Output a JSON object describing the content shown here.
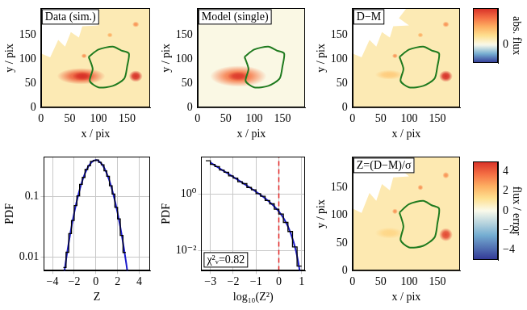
{
  "chart_data": [
    {
      "type": "image",
      "title": "Data (sim.)",
      "x_label": "x / pix",
      "y_label": "y / pix",
      "xlim": [
        0,
        190
      ],
      "ylim": [
        0,
        205
      ],
      "xticks": [
        0,
        50,
        100,
        150
      ],
      "yticks": [
        0,
        50,
        100,
        150
      ],
      "clim": [
        -0.5,
        1.0
      ],
      "background": 0.15,
      "color": "#1e7a1e",
      "sources": [
        {
          "x": 70,
          "y": 65,
          "rx": 42,
          "ry": 17,
          "value": 0.8
        },
        {
          "x": 72,
          "y": 65,
          "rx": 18,
          "ry": 9,
          "value": 1.0
        },
        {
          "x": 165,
          "y": 65,
          "rx": 12,
          "ry": 12,
          "value": 1.0
        },
        {
          "x": 75,
          "y": 107,
          "rx": 5,
          "ry": 5,
          "value": 0.6
        },
        {
          "x": 120,
          "y": 150,
          "rx": 5,
          "ry": 5,
          "value": 0.5
        },
        {
          "x": 165,
          "y": 172,
          "rx": 6,
          "ry": 6,
          "value": 0.6
        }
      ],
      "mask": [
        [
          0,
          205
        ],
        [
          95,
          205
        ],
        [
          82,
          185
        ],
        [
          100,
          170
        ],
        [
          72,
          168
        ],
        [
          66,
          145
        ],
        [
          52,
          156
        ],
        [
          42,
          126
        ],
        [
          30,
          140
        ],
        [
          16,
          104
        ],
        [
          0,
          112
        ]
      ],
      "contour": [
        [
          83,
          105
        ],
        [
          100,
          120
        ],
        [
          125,
          126
        ],
        [
          140,
          118
        ],
        [
          153,
          112
        ],
        [
          150,
          85
        ],
        [
          145,
          60
        ],
        [
          125,
          45
        ],
        [
          100,
          42
        ],
        [
          85,
          55
        ],
        [
          90,
          80
        ]
      ]
    },
    {
      "type": "image",
      "title": "Model (single)",
      "x_label": "x / pix",
      "y_label": "y / pix",
      "xlim": [
        0,
        190
      ],
      "ylim": [
        0,
        205
      ],
      "xticks": [
        0,
        50,
        100,
        150
      ],
      "yticks": [
        0,
        50,
        100,
        150
      ],
      "clim": [
        -0.5,
        1.0
      ],
      "background": 0.02,
      "color": "#1e7a1e",
      "sources": [
        {
          "x": 72,
          "y": 65,
          "rx": 50,
          "ry": 22,
          "value": 0.7
        },
        {
          "x": 72,
          "y": 65,
          "rx": 20,
          "ry": 10,
          "value": 0.95
        }
      ],
      "contour": [
        [
          83,
          105
        ],
        [
          100,
          120
        ],
        [
          125,
          126
        ],
        [
          140,
          118
        ],
        [
          153,
          112
        ],
        [
          150,
          85
        ],
        [
          145,
          60
        ],
        [
          125,
          45
        ],
        [
          100,
          42
        ],
        [
          85,
          55
        ],
        [
          90,
          80
        ]
      ]
    },
    {
      "type": "image",
      "title": "D−M",
      "x_label": "x / pix",
      "y_label": "y / pix",
      "xlim": [
        0,
        190
      ],
      "ylim": [
        0,
        205
      ],
      "xticks": [
        0,
        50,
        100,
        150
      ],
      "yticks": [
        0,
        50,
        100,
        150
      ],
      "clim": [
        -0.5,
        1.0
      ],
      "background": 0.15,
      "color": "#1e7a1e",
      "sources": [
        {
          "x": 65,
          "y": 68,
          "rx": 25,
          "ry": 10,
          "value": 0.35
        },
        {
          "x": 165,
          "y": 65,
          "rx": 12,
          "ry": 12,
          "value": 1.0
        },
        {
          "x": 75,
          "y": 107,
          "rx": 5,
          "ry": 5,
          "value": 0.6
        },
        {
          "x": 120,
          "y": 150,
          "rx": 5,
          "ry": 5,
          "value": 0.5
        },
        {
          "x": 165,
          "y": 172,
          "rx": 6,
          "ry": 6,
          "value": 0.6
        }
      ],
      "mask": [
        [
          0,
          205
        ],
        [
          95,
          205
        ],
        [
          82,
          185
        ],
        [
          100,
          170
        ],
        [
          72,
          168
        ],
        [
          66,
          145
        ],
        [
          52,
          156
        ],
        [
          42,
          126
        ],
        [
          30,
          140
        ],
        [
          16,
          104
        ],
        [
          0,
          112
        ]
      ],
      "contour": [
        [
          83,
          105
        ],
        [
          100,
          120
        ],
        [
          125,
          126
        ],
        [
          140,
          118
        ],
        [
          153,
          112
        ],
        [
          150,
          85
        ],
        [
          145,
          60
        ],
        [
          125,
          45
        ],
        [
          100,
          42
        ],
        [
          85,
          55
        ],
        [
          90,
          80
        ]
      ]
    },
    {
      "type": "colorbar",
      "y_label": "abs. flux",
      "ylim": [
        -0.5,
        1.0
      ],
      "yticks": [
        0
      ]
    },
    {
      "type": "histogram",
      "x_label": "Z",
      "y_label": "PDF",
      "log": "y",
      "grid": true,
      "xlim": [
        -4.8,
        5.0
      ],
      "ylim": [
        0.006,
        0.45
      ],
      "xticks": [
        {
          "value": -4,
          "label": "−4"
        },
        {
          "value": -2,
          "label": "−2"
        },
        0,
        2,
        4
      ],
      "yticks": [
        0.01,
        0.1
      ],
      "color": "#000000",
      "bins": [
        -3,
        -2.75,
        -2.5,
        -2.25,
        -2,
        -1.75,
        -1.5,
        -1.25,
        -1,
        -0.75,
        -0.5,
        -0.25,
        0,
        0.25,
        0.5,
        0.75,
        1,
        1.25,
        1.5,
        1.75,
        2,
        2.25,
        2.5,
        2.75
      ],
      "counts": [
        0.0068,
        0.0121,
        0.0245,
        0.0405,
        0.0712,
        0.103,
        0.159,
        0.207,
        0.279,
        0.321,
        0.38,
        0.392,
        0.401,
        0.366,
        0.334,
        0.266,
        0.216,
        0.151,
        0.11,
        0.0665,
        0.043,
        0.0229,
        0.012
      ],
      "curve": {
        "color": "#1a1acc",
        "x": [
          -3.2,
          -2.8,
          -2.4,
          -2.0,
          -1.6,
          -1.2,
          -0.8,
          -0.4,
          0,
          0.4,
          0.8,
          1.2,
          1.6,
          2.0,
          2.4,
          2.8,
          3.2
        ],
        "values": [
          0.00239,
          0.00792,
          0.0224,
          0.054,
          0.1109,
          0.1942,
          0.2897,
          0.3683,
          0.3989,
          0.3683,
          0.2897,
          0.1942,
          0.1109,
          0.054,
          0.0224,
          0.00792,
          0.00239
        ]
      }
    },
    {
      "type": "histogram",
      "x_label": "log₁₀(Z²)",
      "y_label": "PDF",
      "log": "y",
      "grid": true,
      "xlim": [
        -3.4,
        1.15
      ],
      "ylim": [
        0.002,
        20
      ],
      "xticks": [
        {
          "value": -3,
          "label": "−3"
        },
        {
          "value": -2,
          "label": "−2"
        },
        {
          "value": -1,
          "label": "−1"
        },
        0,
        1
      ],
      "yticks": [
        {
          "value": 0.01,
          "label": "10⁻²"
        },
        {
          "value": 1,
          "label": "10⁰"
        }
      ],
      "color": "#000000",
      "bins": [
        -3.2,
        -3,
        -2.8,
        -2.6,
        -2.4,
        -2.2,
        -2,
        -1.8,
        -1.6,
        -1.4,
        -1.2,
        -1,
        -0.8,
        -0.6,
        -0.4,
        -0.2,
        0,
        0.2,
        0.4,
        0.6,
        0.8,
        1.0
      ],
      "counts": [
        14.6,
        10.9,
        9.2,
        6.9,
        5.8,
        4.3,
        3.6,
        2.7,
        2.3,
        1.69,
        1.4,
        1.02,
        0.83,
        0.59,
        0.45,
        0.29,
        0.196,
        0.1,
        0.048,
        0.0138,
        0.0029
      ],
      "curve": {
        "color": "#1a1acc",
        "x": [
          -3,
          -2.75,
          -2.5,
          -2.25,
          -2,
          -1.75,
          -1.5,
          -1.25,
          -1,
          -0.75,
          -0.5,
          -0.25,
          0,
          0.25,
          0.5,
          0.75,
          1
        ],
        "values": [
          12.61,
          9.45,
          7.08,
          5.3,
          3.97,
          2.965,
          2.208,
          1.636,
          1.2,
          0.8656,
          0.6057,
          0.4016,
          0.242,
          0.123,
          0.0462,
          0.01011,
          0.00085
        ]
      },
      "vline": {
        "x": 0,
        "color": "#e02020",
        "line_style": "dashed"
      },
      "annotation": "χ²ᵥ=0.82"
    },
    {
      "type": "image",
      "title": "Z=(D−M)/σ",
      "x_label": "x / pix",
      "y_label": "y / pix",
      "xlim": [
        0,
        190
      ],
      "ylim": [
        0,
        205
      ],
      "xticks": [
        0,
        50,
        100,
        150
      ],
      "yticks": [
        0,
        50,
        100,
        150
      ],
      "clim": [
        -5,
        5
      ],
      "background": 0.8,
      "color": "#1e7a1e",
      "sources": [
        {
          "x": 65,
          "y": 68,
          "rx": 25,
          "ry": 10,
          "value": 1.5
        },
        {
          "x": 165,
          "y": 65,
          "rx": 12,
          "ry": 12,
          "value": 4.5
        },
        {
          "x": 75,
          "y": 107,
          "rx": 5,
          "ry": 5,
          "value": 3
        },
        {
          "x": 120,
          "y": 150,
          "rx": 5,
          "ry": 5,
          "value": 3
        },
        {
          "x": 165,
          "y": 172,
          "rx": 6,
          "ry": 6,
          "value": 3
        }
      ],
      "mask": [
        [
          0,
          205
        ],
        [
          95,
          205
        ],
        [
          82,
          185
        ],
        [
          100,
          170
        ],
        [
          72,
          168
        ],
        [
          66,
          145
        ],
        [
          52,
          156
        ],
        [
          42,
          126
        ],
        [
          30,
          140
        ],
        [
          16,
          104
        ],
        [
          0,
          112
        ]
      ],
      "contour": [
        [
          83,
          105
        ],
        [
          100,
          120
        ],
        [
          125,
          126
        ],
        [
          140,
          118
        ],
        [
          153,
          112
        ],
        [
          150,
          85
        ],
        [
          145,
          60
        ],
        [
          125,
          45
        ],
        [
          100,
          42
        ],
        [
          85,
          55
        ],
        [
          90,
          80
        ]
      ]
    },
    {
      "type": "colorbar",
      "y_label": "flux / error",
      "ylim": [
        -5,
        5
      ],
      "yticks": [
        {
          "value": -4,
          "label": "−4"
        },
        {
          "value": -2,
          "label": "−2"
        },
        0,
        2,
        4
      ]
    }
  ]
}
